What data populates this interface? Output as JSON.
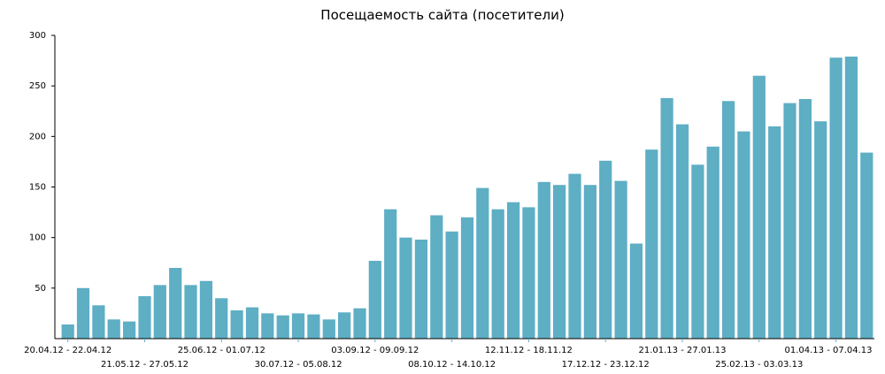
{
  "chart_data": {
    "type": "bar",
    "title": "Посещаемость сайта (посетители)",
    "xlabel": "",
    "ylabel": "",
    "ylim": [
      0,
      300
    ],
    "yticks": [
      50,
      100,
      150,
      200,
      250,
      300
    ],
    "grid": false,
    "legend": "none",
    "bar_color": "#5eaec4",
    "values": [
      14,
      50,
      33,
      19,
      17,
      42,
      53,
      70,
      53,
      57,
      40,
      28,
      31,
      25,
      23,
      25,
      24,
      19,
      26,
      30,
      77,
      128,
      100,
      98,
      122,
      106,
      120,
      149,
      128,
      135,
      130,
      155,
      152,
      163,
      152,
      176,
      156,
      94,
      187,
      238,
      212,
      172,
      190,
      235,
      205,
      260,
      210,
      233,
      237,
      215,
      278,
      279,
      184
    ],
    "x_tick_labels": [
      {
        "index": 0,
        "text": "20.04.12 - 22.04.12",
        "row": 1
      },
      {
        "index": 5,
        "text": "21.05.12 - 27.05.12",
        "row": 2
      },
      {
        "index": 10,
        "text": "25.06.12 - 01.07.12",
        "row": 1
      },
      {
        "index": 15,
        "text": "30.07.12 - 05.08.12",
        "row": 2
      },
      {
        "index": 20,
        "text": "03.09.12 - 09.09.12",
        "row": 1
      },
      {
        "index": 25,
        "text": "08.10.12 - 14.10.12",
        "row": 2
      },
      {
        "index": 30,
        "text": "12.11.12 - 18.11.12",
        "row": 1
      },
      {
        "index": 35,
        "text": "17.12.12 - 23.12.12",
        "row": 2
      },
      {
        "index": 40,
        "text": "21.01.13 - 27.01.13",
        "row": 1
      },
      {
        "index": 45,
        "text": "25.02.13 - 03.03.13",
        "row": 2
      },
      {
        "index": 50,
        "text": "01.04.13 - 07.04.13",
        "row": 1
      }
    ]
  }
}
